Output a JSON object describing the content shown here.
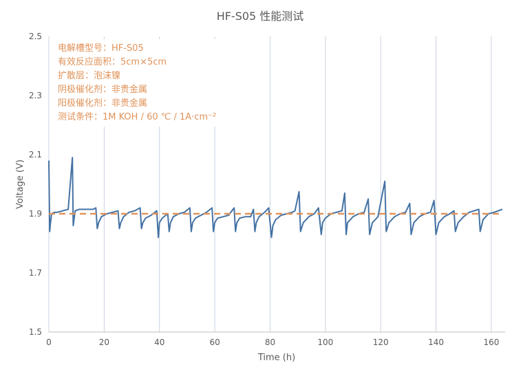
{
  "chart_data": {
    "type": "line",
    "title": "HF-S05 性能测试",
    "xlabel": "Time (h)",
    "ylabel": "Voltage (V)",
    "xlim": [
      0,
      165
    ],
    "ylim": [
      1.5,
      2.5
    ],
    "x_ticks": [
      "0",
      "20",
      "40",
      "60",
      "80",
      "100",
      "120",
      "140",
      "160"
    ],
    "y_ticks": [
      "1.5",
      "1.7",
      "1.9",
      "2.1",
      "2.3",
      "2.5"
    ],
    "grid": "vertical",
    "annotation_lines": [
      "电解槽型号：HF-S05",
      "有效反应面积：5cm×5cm",
      "扩散层：泡沫镍",
      "阴极催化剂：非贵金属",
      "阳极催化剂：非贵金属",
      "测试条件：1M KOH / 60 ℃ / 1A·cm⁻²"
    ],
    "colors": {
      "voltage": "#4472a4",
      "reference": "#e0935a"
    },
    "series": [
      {
        "x": [
          0,
          0.3,
          0.6,
          1,
          2,
          3,
          5,
          7,
          8.5,
          8.8,
          9.5,
          11,
          13,
          16,
          17,
          17.5,
          18,
          19,
          21,
          23,
          25,
          25.5,
          26,
          27,
          29,
          31,
          33,
          33.5,
          34,
          35,
          37,
          39,
          39.6,
          40,
          41,
          43,
          43.5,
          44,
          45,
          47,
          49,
          51,
          51.5,
          52,
          53,
          55,
          57,
          59,
          59.5,
          60,
          61,
          63,
          65,
          67,
          67.5,
          68,
          69,
          71,
          73,
          74,
          74.5,
          75,
          76,
          78,
          79.5,
          80.5,
          81,
          82,
          84,
          86,
          88,
          89,
          90.5,
          91,
          92,
          94,
          96,
          97.5,
          98.5,
          99,
          100,
          102,
          104,
          106,
          107,
          107.5,
          108,
          110,
          112,
          114,
          115.5,
          116,
          117,
          119,
          121.5,
          122,
          123,
          125,
          127,
          129,
          130.5,
          131,
          132,
          134,
          136,
          138,
          139.3,
          140,
          141,
          143,
          145,
          146.5,
          147,
          148,
          150,
          152,
          155.5,
          156,
          157,
          159,
          161,
          164
        ],
        "y": [
          2.08,
          1.84,
          1.87,
          1.9,
          1.905,
          1.905,
          1.91,
          1.915,
          2.09,
          1.86,
          1.91,
          1.915,
          1.915,
          1.915,
          1.92,
          1.85,
          1.87,
          1.89,
          1.9,
          1.905,
          1.91,
          1.85,
          1.87,
          1.89,
          1.905,
          1.91,
          1.92,
          1.85,
          1.87,
          1.885,
          1.895,
          1.91,
          1.82,
          1.87,
          1.885,
          1.9,
          1.84,
          1.87,
          1.89,
          1.9,
          1.905,
          1.92,
          1.84,
          1.87,
          1.885,
          1.895,
          1.905,
          1.92,
          1.84,
          1.87,
          1.885,
          1.89,
          1.895,
          1.92,
          1.84,
          1.87,
          1.885,
          1.89,
          1.89,
          1.915,
          1.84,
          1.87,
          1.89,
          1.905,
          1.92,
          1.82,
          1.86,
          1.88,
          1.895,
          1.9,
          1.905,
          1.91,
          1.975,
          1.84,
          1.87,
          1.89,
          1.9,
          1.92,
          1.83,
          1.87,
          1.885,
          1.9,
          1.905,
          1.91,
          1.97,
          1.83,
          1.87,
          1.89,
          1.9,
          1.905,
          1.95,
          1.83,
          1.87,
          1.89,
          2.01,
          1.84,
          1.87,
          1.89,
          1.9,
          1.905,
          1.935,
          1.83,
          1.87,
          1.89,
          1.9,
          1.905,
          1.945,
          1.83,
          1.87,
          1.89,
          1.9,
          1.91,
          1.84,
          1.87,
          1.89,
          1.905,
          1.915,
          1.84,
          1.88,
          1.9,
          1.905,
          1.915
        ]
      },
      {
        "x": [
          0,
          164
        ],
        "y": [
          1.9,
          1.9
        ]
      }
    ]
  }
}
